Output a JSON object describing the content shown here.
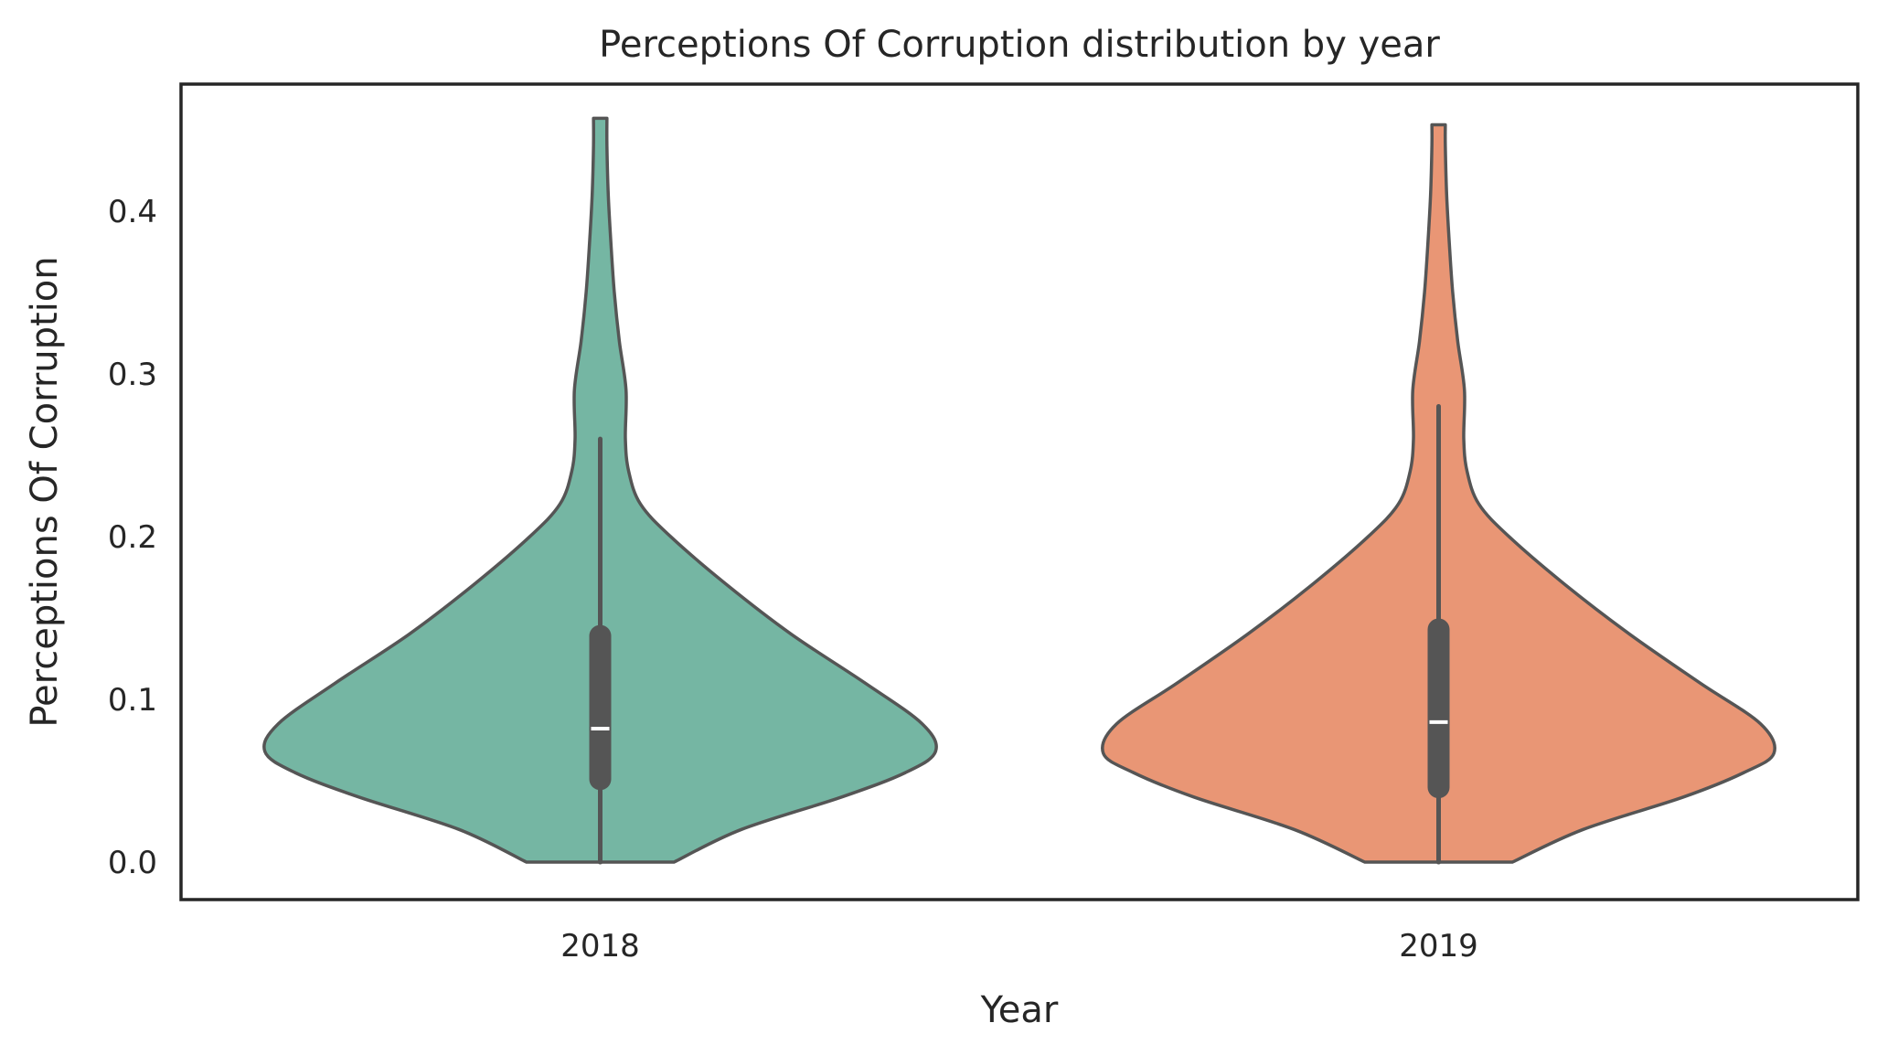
{
  "chart_data": {
    "type": "violin",
    "title": "Perceptions Of Corruption distribution by year",
    "xlabel": "Year",
    "ylabel": "Perceptions Of Corruption",
    "categories": [
      "2018",
      "2019"
    ],
    "ylim": [
      -0.023,
      0.478
    ],
    "yticks": [
      0.0,
      0.1,
      0.2,
      0.3,
      0.4
    ],
    "ytick_labels": [
      "0.0",
      "0.1",
      "0.2",
      "0.3",
      "0.4"
    ],
    "grid": false,
    "series": [
      {
        "category": "2018",
        "color": "#75b6a3",
        "outline": "#555555",
        "min": 0.0,
        "max": 0.457,
        "q1": 0.051,
        "median": 0.082,
        "q3": 0.139,
        "whisker_low": 0.0,
        "whisker_high": 0.26,
        "density": [
          [
            0.0,
            0.22
          ],
          [
            0.02,
            0.42
          ],
          [
            0.04,
            0.72
          ],
          [
            0.055,
            0.91
          ],
          [
            0.068,
            1.0
          ],
          [
            0.085,
            0.96
          ],
          [
            0.11,
            0.79
          ],
          [
            0.14,
            0.57
          ],
          [
            0.17,
            0.38
          ],
          [
            0.2,
            0.21
          ],
          [
            0.22,
            0.12
          ],
          [
            0.24,
            0.085
          ],
          [
            0.26,
            0.075
          ],
          [
            0.29,
            0.077
          ],
          [
            0.32,
            0.057
          ],
          [
            0.35,
            0.042
          ],
          [
            0.38,
            0.032
          ],
          [
            0.41,
            0.024
          ],
          [
            0.44,
            0.02
          ],
          [
            0.457,
            0.02
          ]
        ]
      },
      {
        "category": "2019",
        "color": "#e99675",
        "outline": "#555555",
        "min": 0.0,
        "max": 0.453,
        "q1": 0.046,
        "median": 0.086,
        "q3": 0.143,
        "whisker_low": 0.0,
        "whisker_high": 0.28,
        "density": [
          [
            0.0,
            0.22
          ],
          [
            0.02,
            0.43
          ],
          [
            0.04,
            0.73
          ],
          [
            0.055,
            0.91
          ],
          [
            0.067,
            1.0
          ],
          [
            0.085,
            0.96
          ],
          [
            0.11,
            0.78
          ],
          [
            0.14,
            0.57
          ],
          [
            0.17,
            0.38
          ],
          [
            0.2,
            0.21
          ],
          [
            0.22,
            0.12
          ],
          [
            0.24,
            0.085
          ],
          [
            0.26,
            0.075
          ],
          [
            0.29,
            0.077
          ],
          [
            0.32,
            0.057
          ],
          [
            0.35,
            0.042
          ],
          [
            0.38,
            0.032
          ],
          [
            0.41,
            0.024
          ],
          [
            0.44,
            0.02
          ],
          [
            0.453,
            0.02
          ]
        ]
      }
    ]
  }
}
